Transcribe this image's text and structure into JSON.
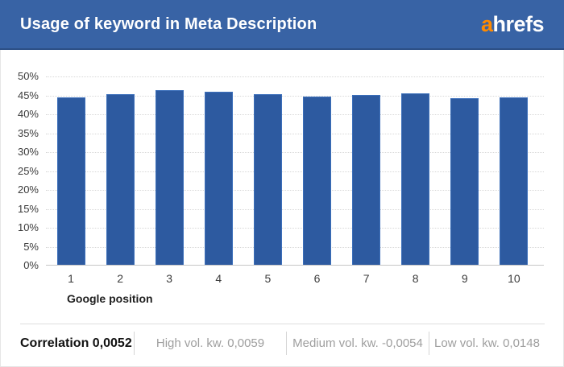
{
  "header": {
    "title": "Usage of keyword in Meta Description",
    "logo_accent_text": "a",
    "logo_rest_text": "hrefs"
  },
  "chart_data": {
    "type": "bar",
    "title": "Usage of keyword in Meta Description",
    "categories": [
      "1",
      "2",
      "3",
      "4",
      "5",
      "6",
      "7",
      "8",
      "9",
      "10"
    ],
    "values": [
      44.2,
      45.1,
      46.1,
      45.8,
      45.2,
      44.5,
      44.8,
      45.3,
      44.1,
      44.3
    ],
    "xlabel": "Google position",
    "ylabel": "",
    "ylim": [
      0,
      50
    ],
    "ytick_step": 5,
    "ytick_labels": [
      "0%",
      "5%",
      "10%",
      "15%",
      "20%",
      "25%",
      "30%",
      "35%",
      "40%",
      "45%",
      "50%"
    ],
    "grid": true,
    "legend": false,
    "bar_color": "#2d5aa0"
  },
  "footer": {
    "correlation": "Correlation 0,0052",
    "stats": [
      "High vol. kw. 0,0059",
      "Medium vol. kw. -0,0054",
      "Low vol. kw. 0,0148"
    ]
  },
  "colors": {
    "header_bg": "#3863a5",
    "bar": "#2d5aa0",
    "logo_accent": "#ff8a00",
    "grid": "#d8d8d8"
  }
}
